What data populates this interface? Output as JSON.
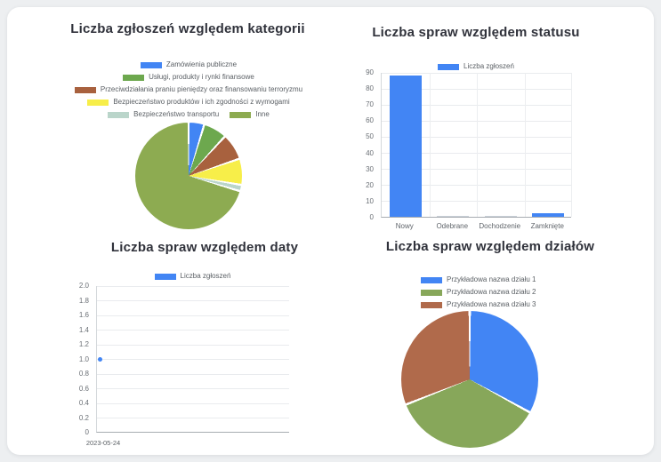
{
  "page": {
    "background_color": "#edeff1",
    "card_color": "#ffffff"
  },
  "palette": {
    "blue": "#4285f4",
    "leaf_green": "#6da84e",
    "olive_green": "#8dab51",
    "dept_green": "#87a75a",
    "brown": "#a8613e",
    "dept_brown": "#b06a4b",
    "yellow": "#f7ee49",
    "pale_teal": "#bad5ca",
    "grid": "#e9ebee",
    "axis": "#a7acb1",
    "title_text": "#30323b",
    "label_text": "#5a5f64"
  },
  "chart_data": [
    {
      "id": "kategorie",
      "type": "pie",
      "title": "Liczba zgłoszeń względem kategorii",
      "labels": [
        "Zamówienia publiczne",
        "Usługi, produkty i rynki finansowe",
        "Przeciwdziałania praniu pieniędzy oraz finansowaniu terroryzmu",
        "Bezpieczeństwo produktów i ich zgodności z wymogami",
        "Bezpieczeństwo transportu",
        "Inne"
      ],
      "values_percent": [
        4.7,
        7.1,
        8.0,
        7.9,
        1.9,
        70.4
      ],
      "colors": [
        "#4285f4",
        "#6da84e",
        "#a8613e",
        "#f7ee49",
        "#bad5ca",
        "#8dab51"
      ],
      "legend_rows": [
        [
          0
        ],
        [
          1
        ],
        [
          2
        ],
        [
          3
        ],
        [
          4,
          5
        ]
      ],
      "start_angle_deg": 0,
      "legend_position": "top"
    },
    {
      "id": "status",
      "type": "bar",
      "title": "Liczba spraw względem statusu",
      "series_label": "Liczba zgłoszeń",
      "categories": [
        "Nowy",
        "Odebrane",
        "Dochodzenie",
        "Zamknięte"
      ],
      "values": [
        88,
        0,
        0,
        2
      ],
      "color": "#4285f4",
      "ylim": [
        0,
        90
      ],
      "ytick_step": 10,
      "yticks_top_to_bottom": [
        "90",
        "80",
        "70",
        "60",
        "50",
        "40",
        "30",
        "20",
        "10",
        "0"
      ],
      "grid": true,
      "legend_position": "top"
    },
    {
      "id": "daty",
      "type": "scatter",
      "title": "Liczba spraw względem daty",
      "series_label": "Liczba zgłoszeń",
      "x": [
        "2023-05-24"
      ],
      "values": [
        1.0
      ],
      "color": "#4285f4",
      "ylim": [
        0,
        2.0
      ],
      "ytick_step": 0.2,
      "yticks_top_to_bottom": [
        "2.0",
        "1.8",
        "1.6",
        "1.4",
        "1.2",
        "1.0",
        "0.8",
        "0.6",
        "0.4",
        "0.2",
        "0"
      ],
      "grid": true,
      "legend_position": "top"
    },
    {
      "id": "dzialy",
      "type": "pie",
      "title": "Liczba spraw względem działów",
      "labels": [
        "Przykładowa nazwa działu 1",
        "Przykładowa nazwa działu 2",
        "Przykładowa nazwa działu 3"
      ],
      "values_percent": [
        33,
        36,
        31
      ],
      "colors": [
        "#4285f4",
        "#87a75a",
        "#b06a4b"
      ],
      "start_angle_deg": 0,
      "legend_position": "top-left-column"
    }
  ]
}
